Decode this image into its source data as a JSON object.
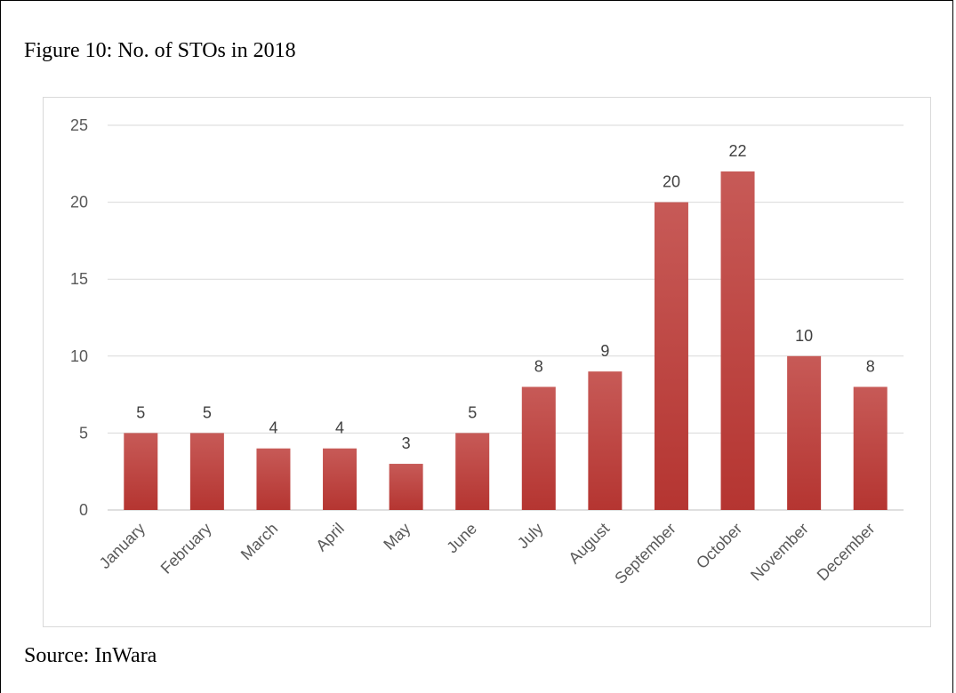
{
  "figure": {
    "caption": "Figure 10: No. of STOs in 2018",
    "source": "Source: InWara"
  },
  "chart_data": {
    "type": "bar",
    "title": "",
    "xlabel": "",
    "ylabel": "",
    "categories": [
      "January",
      "February",
      "March",
      "April",
      "May",
      "June",
      "July",
      "August",
      "September",
      "October",
      "November",
      "December"
    ],
    "values": [
      5,
      5,
      4,
      4,
      3,
      5,
      8,
      9,
      20,
      22,
      10,
      8
    ],
    "ylim": [
      0,
      25
    ],
    "yticks": [
      0,
      5,
      10,
      15,
      20,
      25
    ],
    "grid": true,
    "data_labels": true,
    "bar_color": "#c0504d",
    "bar_color_dark": "#a8302d"
  }
}
